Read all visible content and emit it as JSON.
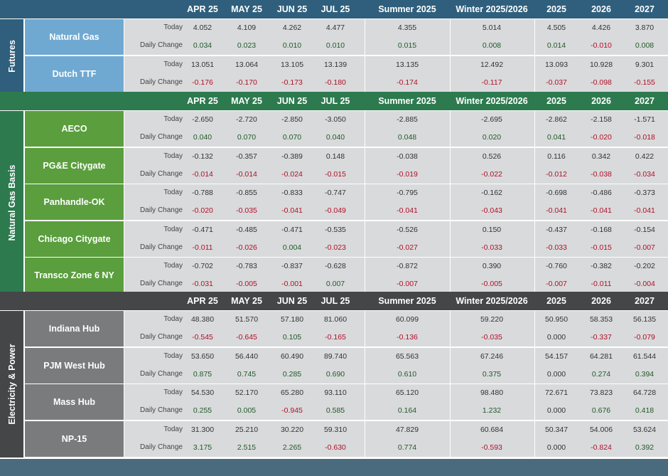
{
  "columns": [
    "APR 25",
    "MAY 25",
    "JUN 25",
    "JUL 25",
    "Summer 2025",
    "Winter 2025/2026",
    "2025",
    "2026",
    "2027"
  ],
  "row_labels": {
    "today": "Today",
    "change": "Daily Change"
  },
  "colors": {
    "header_blue": "#2f5f7c",
    "futures_side": "#2f5f7c",
    "futures_label": "#6fa9d2",
    "gas_header": "#2d7a4f",
    "gas_side": "#2d7a4f",
    "gas_label": "#5a9e3d",
    "power_header": "#444648",
    "power_side": "#444648",
    "power_label": "#7a7b7c",
    "positive": "#1f5a2a",
    "negative": "#b0102a",
    "footer": "#4a6a7d"
  },
  "sections": [
    {
      "title": "Futures",
      "rows": [
        {
          "label": "Natural Gas",
          "today": [
            "4.052",
            "4.109",
            "4.262",
            "4.477",
            "4.355",
            "5.014",
            "4.505",
            "4.426",
            "3.870"
          ],
          "change": [
            "0.034",
            "0.023",
            "0.010",
            "0.010",
            "0.015",
            "0.008",
            "0.014",
            "-0.010",
            "0.008"
          ]
        },
        {
          "label": "Dutch TTF",
          "today": [
            "13.051",
            "13.064",
            "13.105",
            "13.139",
            "13.135",
            "12.492",
            "13.093",
            "10.928",
            "9.301"
          ],
          "change": [
            "-0.176",
            "-0.170",
            "-0.173",
            "-0.180",
            "-0.174",
            "-0.117",
            "-0.037",
            "-0.098",
            "-0.155"
          ]
        }
      ]
    },
    {
      "title": "Natural Gas Basis",
      "rows": [
        {
          "label": "AECO",
          "today": [
            "-2.650",
            "-2.720",
            "-2.850",
            "-3.050",
            "-2.885",
            "-2.695",
            "-2.862",
            "-2.158",
            "-1.571"
          ],
          "change": [
            "0.040",
            "0.070",
            "0.070",
            "0.040",
            "0.048",
            "0.020",
            "0.041",
            "-0.020",
            "-0.018"
          ]
        },
        {
          "label": "PG&E Citygate",
          "today": [
            "-0.132",
            "-0.357",
            "-0.389",
            "0.148",
            "-0.038",
            "0.526",
            "0.116",
            "0.342",
            "0.422"
          ],
          "change": [
            "-0.014",
            "-0.014",
            "-0.024",
            "-0.015",
            "-0.019",
            "-0.022",
            "-0.012",
            "-0.038",
            "-0.034"
          ]
        },
        {
          "label": "Panhandle-OK",
          "today": [
            "-0.788",
            "-0.855",
            "-0.833",
            "-0.747",
            "-0.795",
            "-0.162",
            "-0.698",
            "-0.486",
            "-0.373"
          ],
          "change": [
            "-0.020",
            "-0.035",
            "-0.041",
            "-0.049",
            "-0.041",
            "-0.043",
            "-0.041",
            "-0.041",
            "-0.041"
          ]
        },
        {
          "label": "Chicago Citygate",
          "today": [
            "-0.471",
            "-0.485",
            "-0.471",
            "-0.535",
            "-0.526",
            "0.150",
            "-0.437",
            "-0.168",
            "-0.154"
          ],
          "change": [
            "-0.011",
            "-0.026",
            "0.004",
            "-0.023",
            "-0.027",
            "-0.033",
            "-0.033",
            "-0.015",
            "-0.007"
          ]
        },
        {
          "label": "Transco Zone 6 NY",
          "today": [
            "-0.702",
            "-0.783",
            "-0.837",
            "-0.628",
            "-0.872",
            "0.390",
            "-0.760",
            "-0.382",
            "-0.202"
          ],
          "change": [
            "-0.031",
            "-0.005",
            "-0.001",
            "0.007",
            "-0.007",
            "-0.005",
            "-0.007",
            "-0.011",
            "-0.004"
          ]
        }
      ]
    },
    {
      "title": "Electricity & Power",
      "rows": [
        {
          "label": "Indiana Hub",
          "today": [
            "48.380",
            "51.570",
            "57.180",
            "81.060",
            "60.099",
            "59.220",
            "50.950",
            "58.353",
            "56.135"
          ],
          "change": [
            "-0.545",
            "-0.645",
            "0.105",
            "-0.165",
            "-0.136",
            "-0.035",
            "0.000",
            "-0.337",
            "-0.079"
          ]
        },
        {
          "label": "PJM West Hub",
          "today": [
            "53.650",
            "56.440",
            "60.490",
            "89.740",
            "65.563",
            "67.246",
            "54.157",
            "64.281",
            "61.544"
          ],
          "change": [
            "0.875",
            "0.745",
            "0.285",
            "0.690",
            "0.610",
            "0.375",
            "0.000",
            "0.274",
            "0.394"
          ]
        },
        {
          "label": "Mass Hub",
          "today": [
            "54.530",
            "52.170",
            "65.280",
            "93.110",
            "65.120",
            "98.480",
            "72.671",
            "73.823",
            "64.728"
          ],
          "change": [
            "0.255",
            "0.005",
            "-0.945",
            "0.585",
            "0.164",
            "1.232",
            "0.000",
            "0.676",
            "0.418"
          ]
        },
        {
          "label": "NP-15",
          "today": [
            "31.300",
            "25.210",
            "30.220",
            "59.310",
            "47.829",
            "60.684",
            "50.347",
            "54.006",
            "53.624"
          ],
          "change": [
            "3.175",
            "2.515",
            "2.265",
            "-0.630",
            "0.774",
            "-0.593",
            "0.000",
            "-0.824",
            "0.392"
          ]
        }
      ]
    }
  ]
}
